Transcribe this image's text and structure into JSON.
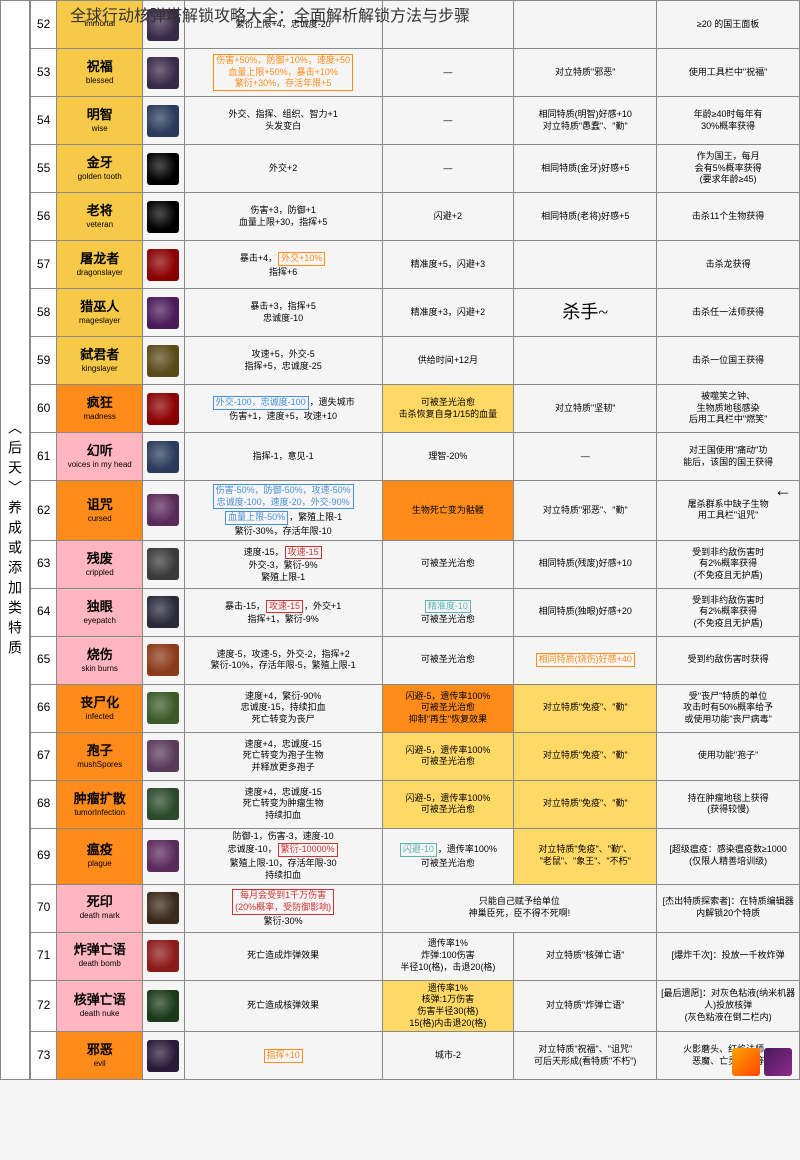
{
  "page_title": "全球行动核弹塔解锁攻略大全：全面解析解锁方法与步骤",
  "side_label": "〈后天〉养成或添加类特质",
  "arrow": "←",
  "colors": {
    "gold": "#f7c948",
    "gold_dark": "#e6b800",
    "orange": "#ff8c1a",
    "orange_bright": "#ffa500",
    "pink": "#ffb6c1",
    "pink_dark": "#ff7f9f",
    "white": "#ffffff",
    "gray": "#dddddd",
    "hl_blue": "#4a90d9",
    "hl_orange": "#ff8c1a",
    "hl_yellow_bg": "#ffd966",
    "hl_orange_bg": "#ff8c1a",
    "hl_cyan": "#5fb3b3",
    "hl_red": "#cc3333"
  },
  "rows": [
    {
      "n": "52",
      "cn": "",
      "en": "immortal",
      "bg": "#f7c948",
      "icon_bg": "#3a2a4a",
      "e1_parts": [
        {
          "t": "繁衍上限+4，忠诚度-20"
        }
      ],
      "e1_bg": "",
      "e2": "",
      "e2_bg": "",
      "c": "",
      "c_bg": "",
      "u": "≥20 的国王面板"
    },
    {
      "n": "53",
      "cn": "祝福",
      "en": "blessed",
      "bg": "#f7c948",
      "icon_bg": "#3a2a4a",
      "e1_parts": [
        {
          "t": "伤害+50%，防御+10%，速度+50\n血量上限+50%，暴击+10%\n繁衍+30%，存活年限+5",
          "box": "#ff8c1a"
        }
      ],
      "e2": "—",
      "c": "对立特质\"邪恶\"",
      "u": "使用工具栏中\"祝福\""
    },
    {
      "n": "54",
      "cn": "明智",
      "en": "wise",
      "bg": "#f7c948",
      "icon_bg": "#2a3a5a",
      "e1_parts": [
        {
          "t": "外交、指挥、组织、智力+1\n头发变白"
        }
      ],
      "e2": "—",
      "c": "相同特质(明智)好感+10\n对立特质\"愚蠢\"、\"勤\"",
      "u": "年龄≥40时每年有\n30%概率获得"
    },
    {
      "n": "55",
      "cn": "金牙",
      "en": "golden tooth",
      "bg": "#f7c948",
      "icon_bg": "#000",
      "e1_parts": [
        {
          "t": "外交+2"
        }
      ],
      "e2": "—",
      "c": "相同特质(金牙)好感+5",
      "u": "作为国王，每月\n会有5%概率获得\n(要求年龄≥45)"
    },
    {
      "n": "56",
      "cn": "老将",
      "en": "veteran",
      "bg": "#f7c948",
      "icon_bg": "#000",
      "e1_parts": [
        {
          "t": "伤害+3，防御+1\n血量上限+30，指挥+5"
        }
      ],
      "e2": "闪避+2",
      "c": "相同特质(老将)好感+5",
      "u": "击杀11个生物获得"
    },
    {
      "n": "57",
      "cn": "屠龙者",
      "en": "dragonslayer",
      "bg": "#f7c948",
      "icon_bg": "#8b0000",
      "e1_parts": [
        {
          "t": "暴击+4，"
        },
        {
          "t": "外交+10%",
          "box": "#ff8c1a"
        },
        {
          "t": "\n指挥+6"
        }
      ],
      "e2": "精准度+5，闪避+3",
      "c": "",
      "u": "击杀龙获得"
    },
    {
      "n": "58",
      "cn": "猎巫人",
      "en": "mageslayer",
      "bg": "#f7c948",
      "icon_bg": "#4a1a5a",
      "e1_parts": [
        {
          "t": "暴击+3，指挥+5\n忠诚度-10"
        }
      ],
      "e2": "精准度+3，闪避+2",
      "c": "杀手~",
      "c_style": "font-size:18px;font-family:cursive",
      "u": "击杀任一法师获得"
    },
    {
      "n": "59",
      "cn": "弑君者",
      "en": "kingslayer",
      "bg": "#f7c948",
      "icon_bg": "#5a4a1a",
      "e1_parts": [
        {
          "t": "攻速+5，外交-5\n指挥+5，忠诚度-25"
        }
      ],
      "e2": "供给时间+12月",
      "c": "",
      "u": "击杀一位国王获得"
    },
    {
      "n": "60",
      "cn": "疯狂",
      "en": "madness",
      "bg": "#ff8c1a",
      "icon_bg": "#8b0000",
      "e1_parts": [
        {
          "t": "外交-100，忠诚度-100",
          "box": "#4a90d9"
        },
        {
          "t": "，遗失城市\n伤害+1，速度+5，攻速+10"
        }
      ],
      "e2": "可被圣光治愈\n击杀恢复自身1/15的血量",
      "e2_bg": "#ffd966",
      "c": "对立特质\"坚韧\"",
      "u": "被噬笑之钟、\n生物质地毯感染\n后用工具栏中\"燃笑\""
    },
    {
      "n": "61",
      "cn": "幻听",
      "en": "voices in my head",
      "bg": "#ffb6c1",
      "icon_bg": "#2a3a5a",
      "e1_parts": [
        {
          "t": "指挥-1，意见-1"
        }
      ],
      "e2": "理智-20%",
      "c": "—",
      "u": "对王国使用\"痛动\"功\n能后，该国的国王获得"
    },
    {
      "n": "62",
      "cn": "诅咒",
      "en": "cursed",
      "bg": "#ff8c1a",
      "icon_bg": "#5a2a5a",
      "e1_parts": [
        {
          "t": "伤害-50%，防御-50%，攻速-50%\n忠诚度-100，速度-20，外交-90%",
          "box": "#4a90d9"
        },
        {
          "t": "\n"
        },
        {
          "t": "血量上限-50%",
          "box": "#4a90d9"
        },
        {
          "t": "，繁殖上限-1\n繁衍-30%，存活年限-10"
        }
      ],
      "e2": "生物死亡变为骷髅",
      "e2_bg": "#ff8c1a",
      "c": "对立特质\"邪恶\"、\"勤\"",
      "u": "屠杀群系中缺子生物\n用工具栏\"诅咒\""
    },
    {
      "n": "63",
      "cn": "残废",
      "en": "crippled",
      "bg": "#ffb6c1",
      "icon_bg": "#3a3a3a",
      "e1_parts": [
        {
          "t": "速度-15，"
        },
        {
          "t": "攻速-15",
          "box": "#cc3333"
        },
        {
          "t": "\n外交-3，繁衍-9%\n繁殖上限-1"
        }
      ],
      "e2": "可被圣光治愈",
      "c": "相同特质(残废)好感+10",
      "u": "受到非约敌伤害时\n有2%概率获得\n(不免疫且无护盾)"
    },
    {
      "n": "64",
      "cn": "独眼",
      "en": "eyepatch",
      "bg": "#ffb6c1",
      "icon_bg": "#2a2a3a",
      "e1_parts": [
        {
          "t": "暴击-15，"
        },
        {
          "t": "攻速-15",
          "box": "#cc3333"
        },
        {
          "t": "，外交+1\n指挥+1，繁衍-9%"
        }
      ],
      "e2_parts": [
        {
          "t": "精准度-10",
          "box": "#5fb3b3"
        },
        {
          "t": "\n可被圣光治愈"
        }
      ],
      "c": "相同特质(独眼)好感+20",
      "u": "受到非约敌伤害时\n有2%概率获得\n(不免疫且无护盾)"
    },
    {
      "n": "65",
      "cn": "烧伤",
      "en": "skin burns",
      "bg": "#ffb6c1",
      "icon_bg": "#8b3a1a",
      "e1_parts": [
        {
          "t": "速度-5，攻速-5，外交-2，指挥+2\n繁衍-10%，存活年限-5，繁殖上限-1"
        }
      ],
      "e2": "可被圣光治愈",
      "c_parts": [
        {
          "t": "相同特质(烧伤)好感+40",
          "box": "#ff8c1a"
        }
      ],
      "u": "受到约敌伤害时获得"
    },
    {
      "n": "66",
      "cn": "丧尸化",
      "en": "infected",
      "bg": "#ff8c1a",
      "icon_bg": "#3a5a2a",
      "e1_parts": [
        {
          "t": "速度+4，繁衍-90%\n忠诚度-15，持续扣血\n死亡转变为丧尸"
        }
      ],
      "e2": "闪避-5，遗传率100%\n可被圣光治愈\n抑制\"再生\"恢复效果",
      "e2_bg": "#ff8c1a",
      "c": "对立特质\"免疫\"、\"勤\"",
      "c_bg": "#ffd966",
      "u": "受\"丧尸\"特质的单位\n攻击时有50%概率给予\n或使用功能\"丧尸病毒\""
    },
    {
      "n": "67",
      "cn": "孢子",
      "en": "mushSpores",
      "bg": "#ff8c1a",
      "icon_bg": "#5a3a5a",
      "e1_parts": [
        {
          "t": "速度+4，忠诚度-15\n死亡转变为孢子生物\n并释放更多孢子"
        }
      ],
      "e2": "闪避-5，遗传率100%\n可被圣光治愈",
      "e2_bg": "#ffd966",
      "c": "对立特质\"免疫\"、\"勤\"",
      "c_bg": "#ffd966",
      "u": "使用功能\"孢子\""
    },
    {
      "n": "68",
      "cn": "肿瘤扩散",
      "en": "tumorInfection",
      "bg": "#ff8c1a",
      "icon_bg": "#2a4a2a",
      "e1_parts": [
        {
          "t": "速度+4，忠诚度-15\n死亡转变为肿瘤生物\n持续扣血"
        }
      ],
      "e2": "闪避-5，遗传率100%\n可被圣光治愈",
      "e2_bg": "#ffd966",
      "c": "对立特质\"免疫\"、\"勤\"",
      "c_bg": "#ffd966",
      "u": "持在肿瘤地毯上获得\n(获得较慢)"
    },
    {
      "n": "69",
      "cn": "瘟疫",
      "en": "plague",
      "bg": "#ff8c1a",
      "icon_bg": "#5a2a5a",
      "e1_parts": [
        {
          "t": "防御-1，伤害-3，速度-10\n忠诚度-10，"
        },
        {
          "t": "繁衍-10000%",
          "box": "#cc3333"
        },
        {
          "t": "\n繁殖上限-10，存活年限-30\n持续扣血"
        }
      ],
      "e2_parts": [
        {
          "t": "闪避-10",
          "box": "#5fb3b3"
        },
        {
          "t": "，遗传率100%\n可被圣光治愈"
        }
      ],
      "c": "对立特质\"免疫\"、\"勤\"、\n\"老鼠\"、\"象王\"、\"不朽\"",
      "c_bg": "#ffd966",
      "u": "[超级瘟疫：感染瘟疫数≥1000\n(仅限人精善培训级)"
    },
    {
      "n": "70",
      "cn": "死印",
      "en": "death mark",
      "bg": "#ffb6c1",
      "icon_bg": "#3a2a1a",
      "e1_parts": [
        {
          "t": "每月会受到1千万伤害\n(20%概率，受防御影响)",
          "box": "#cc3333"
        },
        {
          "t": "\n繁衍-30%"
        }
      ],
      "e2": "只能自己赋予给单位\n神巢臣死，臣不得不死啊!",
      "e2_span": "2",
      "c": "",
      "u": "[杰出特质探索者]：在特质编辑器内解锁20个特质"
    },
    {
      "n": "71",
      "cn": "炸弹亡语",
      "en": "death bomb",
      "bg": "#ffb6c1",
      "icon_bg": "#8b1a1a",
      "e1_parts": [
        {
          "t": "死亡造成炸弹效果"
        }
      ],
      "e2": "遗传率1%\n炸弹:100伤害\n半径10(格)，击退20(格)",
      "c": "对立特质\"核弹亡语\"",
      "u": "[爆炸千次]：投放一千枚炸弹"
    },
    {
      "n": "72",
      "cn": "核弹亡语",
      "en": "death nuke",
      "bg": "#ffb6c1",
      "icon_bg": "#1a3a1a",
      "e1_parts": [
        {
          "t": "死亡造成核弹效果"
        }
      ],
      "e2": "遗传率1%\n核弹:1万伤害\n伤害半径30(格)\n15(格)内击退20(格)",
      "e2_bg": "#ffd966",
      "c": "对立特质\"炸弹亡语\"",
      "u": "[最后遗愿]：对灰色粘液(纳米机器人)投放核弹\n(灰色粘液在倒二栏内)"
    },
    {
      "n": "73",
      "cn": "邪恶",
      "en": "evil",
      "bg": "#ff8c1a",
      "icon_bg": "#2a1a3a",
      "e1_parts": [
        {
          "t": "指挥+10",
          "box": "#ff8c1a"
        }
      ],
      "e2": "城市-2",
      "c": "对立特质\"祝福\"、\"诅咒\"\n可后天形成(看特质\"不朽\")",
      "u": "火影蘑头、红焰法师、\n恶魔、亡灵法师等"
    }
  ]
}
